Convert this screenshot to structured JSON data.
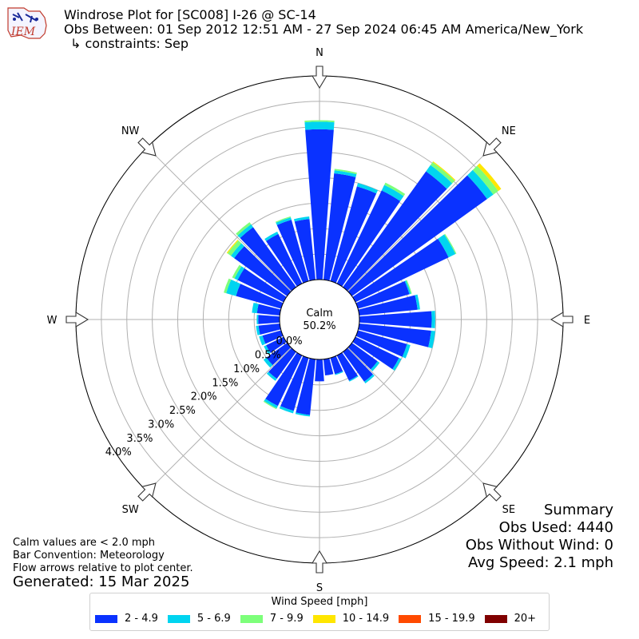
{
  "header": {
    "title_line1": "Windrose Plot for [SC008] I-26 @ SC-14",
    "title_line2": "Obs Between: 01 Sep 2012 12:51 AM - 27 Sep 2024 06:45 AM America/New_York",
    "title_line3": "↳ constraints: Sep",
    "logo_text": "IEM"
  },
  "summary": {
    "heading": "Summary",
    "obs_used": "Obs Used: 4440",
    "obs_without_wind": "Obs Without Wind: 0",
    "avg_speed": "Avg Speed: 2.1 mph"
  },
  "notes": {
    "line1": "Calm values are < 2.0 mph",
    "line2": "Bar Convention: Meteorology",
    "line3": "Flow arrows relative to plot center."
  },
  "generated": "Generated: 15 Mar 2025",
  "legend": {
    "title": "Wind Speed [mph]",
    "items": [
      {
        "label": "2 - 4.9",
        "color": "#0a32ff"
      },
      {
        "label": "5 - 6.9",
        "color": "#00d4f0"
      },
      {
        "label": "7 - 9.9",
        "color": "#7dff7a"
      },
      {
        "label": "10 - 14.9",
        "color": "#ffe600"
      },
      {
        "label": "15 - 19.9",
        "color": "#ff4a00"
      },
      {
        "label": "20+",
        "color": "#800000"
      }
    ]
  },
  "chart_data": {
    "type": "windrose",
    "calm_label": "Calm",
    "calm_value": "50.2%",
    "directions": [
      "N",
      "NE",
      "E",
      "SE",
      "S",
      "SW",
      "W",
      "NW"
    ],
    "ring_labels": [
      "0.0%",
      "0.5%",
      "1.0%",
      "1.5%",
      "2.0%",
      "2.5%",
      "3.0%",
      "3.5%",
      "4.0%"
    ],
    "rmax": 4.0,
    "bins": [
      "2 - 4.9",
      "5 - 6.9",
      "7 - 9.9",
      "10 - 14.9",
      "15 - 19.9",
      "20+"
    ],
    "sectors": [
      {
        "dir": 0,
        "values": [
          2.95,
          0.15,
          0.03,
          0.0,
          0.0,
          0.0
        ]
      },
      {
        "dir": 10,
        "values": [
          2.1,
          0.06,
          0.03,
          0.0,
          0.0,
          0.0
        ]
      },
      {
        "dir": 20,
        "values": [
          1.93,
          0.07,
          0.0,
          0.0,
          0.0,
          0.0
        ]
      },
      {
        "dir": 30,
        "values": [
          2.03,
          0.12,
          0.05,
          0.0,
          0.0,
          0.0
        ]
      },
      {
        "dir": 40,
        "values": [
          2.8,
          0.15,
          0.07,
          0.02,
          0.0,
          0.0
        ]
      },
      {
        "dir": 50,
        "values": [
          3.27,
          0.15,
          0.12,
          0.07,
          0.0,
          0.0
        ]
      },
      {
        "dir": 60,
        "values": [
          2.03,
          0.15,
          0.02,
          0.0,
          0.0,
          0.0
        ]
      },
      {
        "dir": 70,
        "values": [
          1.05,
          0.03,
          0.02,
          0.0,
          0.0,
          0.0
        ]
      },
      {
        "dir": 80,
        "values": [
          1.15,
          0.05,
          0.0,
          0.0,
          0.0,
          0.0
        ]
      },
      {
        "dir": 90,
        "values": [
          1.42,
          0.07,
          0.0,
          0.0,
          0.0,
          0.0
        ]
      },
      {
        "dir": 100,
        "values": [
          1.42,
          0.08,
          0.0,
          0.0,
          0.0,
          0.0
        ]
      },
      {
        "dir": 110,
        "values": [
          1.0,
          0.07,
          0.0,
          0.0,
          0.0,
          0.0
        ]
      },
      {
        "dir": 120,
        "values": [
          0.95,
          0.05,
          0.0,
          0.0,
          0.0,
          0.0
        ]
      },
      {
        "dir": 130,
        "values": [
          0.62,
          0.05,
          0.0,
          0.0,
          0.0,
          0.0
        ]
      },
      {
        "dir": 140,
        "values": [
          0.72,
          0.04,
          0.0,
          0.0,
          0.0,
          0.0
        ]
      },
      {
        "dir": 150,
        "values": [
          0.55,
          0.02,
          0.0,
          0.0,
          0.0,
          0.0
        ]
      },
      {
        "dir": 160,
        "values": [
          0.33,
          0.02,
          0.0,
          0.0,
          0.0,
          0.0
        ]
      },
      {
        "dir": 170,
        "values": [
          0.32,
          0.0,
          0.0,
          0.0,
          0.0,
          0.0
        ]
      },
      {
        "dir": 180,
        "values": [
          0.43,
          0.0,
          0.0,
          0.0,
          0.0,
          0.0
        ]
      },
      {
        "dir": 190,
        "values": [
          1.1,
          0.03,
          0.0,
          0.0,
          0.0,
          0.0
        ]
      },
      {
        "dir": 200,
        "values": [
          1.08,
          0.05,
          0.0,
          0.0,
          0.0,
          0.0
        ]
      },
      {
        "dir": 210,
        "values": [
          1.1,
          0.05,
          0.02,
          0.0,
          0.0,
          0.0
        ]
      },
      {
        "dir": 220,
        "values": [
          0.65,
          0.05,
          0.0,
          0.0,
          0.0,
          0.0
        ]
      },
      {
        "dir": 230,
        "values": [
          0.5,
          0.07,
          0.0,
          0.0,
          0.0,
          0.0
        ]
      },
      {
        "dir": 240,
        "values": [
          0.38,
          0.05,
          0.0,
          0.0,
          0.0,
          0.0
        ]
      },
      {
        "dir": 250,
        "values": [
          0.38,
          0.07,
          0.0,
          0.0,
          0.0,
          0.0
        ]
      },
      {
        "dir": 260,
        "values": [
          0.42,
          0.05,
          0.0,
          0.0,
          0.0,
          0.0
        ]
      },
      {
        "dir": 270,
        "values": [
          0.42,
          0.03,
          0.0,
          0.0,
          0.0,
          0.0
        ]
      },
      {
        "dir": 280,
        "values": [
          0.45,
          0.1,
          0.0,
          0.0,
          0.0,
          0.0
        ]
      },
      {
        "dir": 290,
        "values": [
          0.92,
          0.2,
          0.05,
          0.0,
          0.0,
          0.0
        ]
      },
      {
        "dir": 300,
        "values": [
          1.0,
          0.07,
          0.05,
          0.0,
          0.0,
          0.0
        ]
      },
      {
        "dir": 310,
        "values": [
          1.28,
          0.08,
          0.08,
          0.02,
          0.0,
          0.0
        ]
      },
      {
        "dir": 320,
        "values": [
          1.45,
          0.07,
          0.05,
          0.0,
          0.0,
          0.0
        ]
      },
      {
        "dir": 330,
        "values": [
          1.08,
          0.05,
          0.0,
          0.0,
          0.0,
          0.0
        ]
      },
      {
        "dir": 340,
        "values": [
          1.25,
          0.05,
          0.02,
          0.0,
          0.0,
          0.0
        ]
      },
      {
        "dir": 350,
        "values": [
          1.2,
          0.05,
          0.0,
          0.0,
          0.0,
          0.0
        ]
      }
    ]
  }
}
